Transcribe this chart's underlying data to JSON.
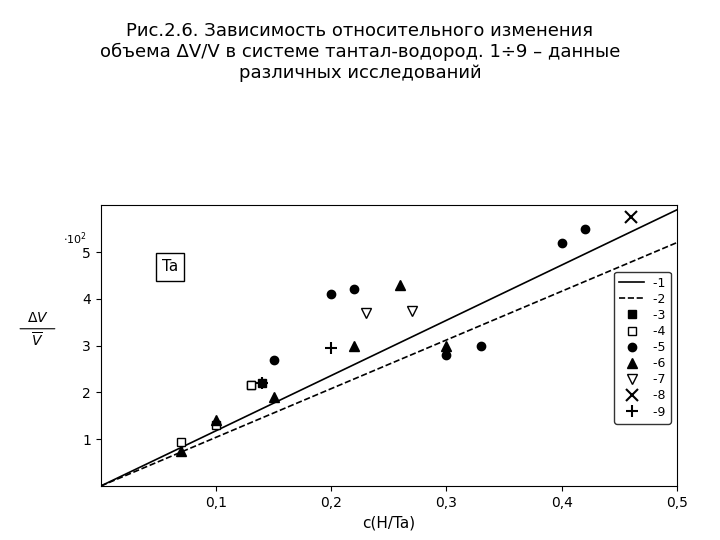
{
  "title": "Рис.2.6. Зависимость относительного изменения\nобъема ΔV/V в системе тантал-водород. 1÷9 – данные\nразличных исследований",
  "xlabel": "c(H/Ta)",
  "xlim": [
    0.0,
    0.5
  ],
  "ylim": [
    0.0,
    6.0
  ],
  "xticks": [
    0.1,
    0.2,
    0.3,
    0.4,
    0.5
  ],
  "yticks": [
    1,
    2,
    3,
    4,
    5
  ],
  "line1_x": [
    0.0,
    0.5
  ],
  "line1_y": [
    0.0,
    5.9
  ],
  "line2_x": [
    0.0,
    0.5
  ],
  "line2_y": [
    0.0,
    5.2
  ],
  "series3_x": [
    0.13,
    0.14
  ],
  "series3_y": [
    2.15,
    2.2
  ],
  "series4_x": [
    0.07,
    0.1,
    0.13
  ],
  "series4_y": [
    0.95,
    1.3,
    2.15
  ],
  "series5_x": [
    0.15,
    0.2,
    0.22,
    0.3,
    0.33,
    0.4,
    0.42
  ],
  "series5_y": [
    2.7,
    4.1,
    4.2,
    2.8,
    3.0,
    5.2,
    5.5
  ],
  "series6_x": [
    0.07,
    0.1,
    0.15,
    0.22,
    0.26,
    0.3
  ],
  "series6_y": [
    0.75,
    1.4,
    1.9,
    3.0,
    4.3,
    3.0
  ],
  "series7_x": [
    0.23,
    0.27
  ],
  "series7_y": [
    3.7,
    3.75
  ],
  "series8_x": [
    0.46
  ],
  "series8_y": [
    5.75
  ],
  "series9_x": [
    0.14,
    0.2
  ],
  "series9_y": [
    2.2,
    2.95
  ],
  "background_color": "#ffffff",
  "title_fontsize": 13,
  "axis_fontsize": 11
}
